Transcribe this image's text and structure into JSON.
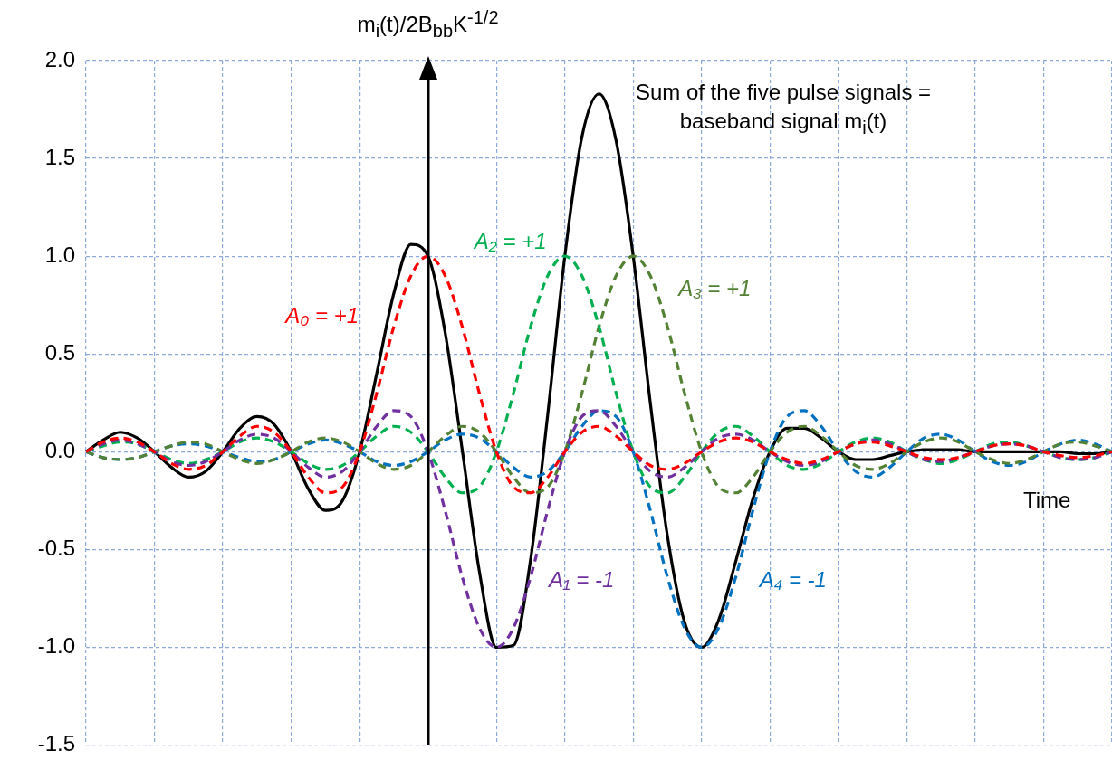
{
  "chart_data": {
    "type": "line",
    "ylabel": "m$_{i}$(t)/2B$_{bb}$K$^{-1/2}$",
    "xlabel": "Time",
    "annotations": [
      "Sum of the five pulse signals = baseband signal m$_{i}$(t)"
    ],
    "categories": [
      null,
      null,
      null,
      null,
      null,
      null,
      null,
      null,
      null,
      null,
      null,
      null,
      null,
      null,
      null,
      null,
      null,
      null,
      null,
      null,
      null,
      null,
      null,
      null,
      null,
      null,
      null,
      null,
      null,
      null,
      null,
      null,
      null,
      null,
      null,
      null,
      null,
      null,
      null,
      null,
      null,
      null,
      null,
      null,
      null,
      null,
      null,
      null,
      null,
      null,
      null,
      null,
      null,
      null,
      null,
      null,
      null,
      null,
      null,
      null,
      null
    ],
    "ylim": [
      -1.5,
      2
    ],
    "yticks": [
      {
        "value": -1.5,
        "label": "-1.5"
      },
      {
        "value": -1,
        "label": "-1.0"
      },
      {
        "value": -0.5,
        "label": "-0.5"
      },
      {
        "value": 0,
        "label": "0.0"
      },
      {
        "value": 0.5,
        "label": "0.5"
      },
      {
        "value": 1,
        "label": "1.0"
      },
      {
        "value": 1.5,
        "label": "1.5"
      },
      {
        "value": 2,
        "label": "2.0"
      }
    ],
    "grid": true,
    "legend": false,
    "marker": "none",
    "tick_labels": "y",
    "series": [
      {
        "name": "A₀ = +1",
        "color": "#ff0000",
        "line_style": "dashed",
        "values": [
          0,
          0.05,
          0.07,
          0.05,
          0,
          -0.06,
          -0.09,
          -0.07,
          0,
          0.08,
          0.13,
          0.1,
          0,
          -0.13,
          -0.21,
          -0.18,
          0,
          0.3,
          0.64,
          0.9,
          1,
          0.9,
          0.64,
          0.3,
          0,
          -0.18,
          -0.21,
          -0.13,
          0,
          0.1,
          0.13,
          0.08,
          0,
          -0.07,
          -0.09,
          -0.06,
          0,
          0.05,
          0.07,
          0.05,
          0,
          -0.04,
          -0.06,
          -0.04,
          0,
          0.04,
          0.05,
          0.03,
          0,
          -0.03,
          -0.04,
          -0.03,
          0,
          0.03,
          0.04,
          0.03,
          0,
          -0.02,
          -0.03,
          -0.02,
          0
        ]
      },
      {
        "name": "A₁ = -1",
        "color": "#7030a0",
        "line_style": "dashed",
        "values": [
          0,
          0.04,
          0.06,
          0.04,
          0,
          -0.05,
          -0.07,
          -0.05,
          0,
          0.06,
          0.09,
          0.07,
          0,
          -0.08,
          -0.13,
          -0.1,
          0,
          0.13,
          0.21,
          0.18,
          0,
          -0.3,
          -0.64,
          -0.9,
          -1,
          -0.9,
          -0.64,
          -0.3,
          0,
          0.18,
          0.21,
          0.13,
          0,
          -0.1,
          -0.13,
          -0.08,
          0,
          0.07,
          0.09,
          0.06,
          0,
          -0.05,
          -0.07,
          -0.05,
          0,
          0.04,
          0.06,
          0.04,
          0,
          -0.04,
          -0.05,
          -0.03,
          0,
          0.03,
          0.04,
          0.03,
          0,
          -0.03,
          -0.04,
          -0.03,
          0
        ]
      },
      {
        "name": "A₂ = +1",
        "color": "#00b050",
        "line_style": "dashed",
        "values": [
          0,
          0.03,
          0.05,
          0.04,
          0,
          -0.04,
          -0.06,
          -0.04,
          0,
          0.05,
          0.07,
          0.05,
          0,
          -0.06,
          -0.09,
          -0.07,
          0,
          0.08,
          0.13,
          0.1,
          0,
          -0.13,
          -0.21,
          -0.18,
          0,
          0.3,
          0.64,
          0.9,
          1,
          0.9,
          0.64,
          0.3,
          0,
          -0.18,
          -0.21,
          -0.13,
          0,
          0.1,
          0.13,
          0.08,
          0,
          -0.07,
          -0.09,
          -0.06,
          0,
          0.05,
          0.07,
          0.05,
          0,
          -0.04,
          -0.06,
          -0.04,
          0,
          0.04,
          0.05,
          0.03,
          0,
          -0.03,
          -0.04,
          -0.03,
          0
        ]
      },
      {
        "name": "A₃ = +1",
        "color": "#548235",
        "line_style": "dashed",
        "values": [
          0,
          -0.03,
          -0.04,
          -0.03,
          0,
          0.03,
          0.05,
          0.04,
          0,
          -0.04,
          -0.06,
          -0.04,
          0,
          0.05,
          0.07,
          0.05,
          0,
          -0.06,
          -0.09,
          -0.07,
          0,
          0.08,
          0.13,
          0.1,
          0,
          -0.13,
          -0.21,
          -0.18,
          0,
          0.3,
          0.64,
          0.9,
          1,
          0.9,
          0.64,
          0.3,
          0,
          -0.18,
          -0.21,
          -0.13,
          0,
          0.1,
          0.13,
          0.08,
          0,
          -0.07,
          -0.09,
          -0.06,
          0,
          0.05,
          0.07,
          0.05,
          0,
          -0.04,
          -0.06,
          -0.04,
          0,
          0.04,
          0.05,
          0.03,
          0
        ]
      },
      {
        "name": "A₄ = -1",
        "color": "#0070c0",
        "line_style": "dashed",
        "values": [
          0,
          -0.03,
          -0.04,
          -0.03,
          0,
          0.03,
          0.04,
          0.03,
          0,
          -0.03,
          -0.05,
          -0.04,
          0,
          0.04,
          0.06,
          0.04,
          0,
          -0.05,
          -0.07,
          -0.05,
          0,
          0.06,
          0.09,
          0.07,
          0,
          -0.08,
          -0.13,
          -0.1,
          0,
          0.13,
          0.21,
          0.18,
          0,
          -0.3,
          -0.64,
          -0.9,
          -1,
          -0.9,
          -0.64,
          -0.3,
          0,
          0.18,
          0.21,
          0.13,
          0,
          -0.1,
          -0.13,
          -0.08,
          0,
          0.07,
          0.09,
          0.06,
          0,
          -0.05,
          -0.07,
          -0.05,
          0,
          0.04,
          0.06,
          0.04,
          0
        ]
      },
      {
        "color": "#000000",
        "line_style": "solid",
        "values": [
          0,
          0.06,
          0.1,
          0.07,
          0,
          -0.08,
          -0.13,
          -0.1,
          0,
          0.12,
          0.18,
          0.14,
          0,
          -0.19,
          -0.3,
          -0.25,
          0,
          0.4,
          0.81,
          1.06,
          1,
          0.61,
          0.01,
          -0.61,
          -1,
          -0.99,
          -0.55,
          0.19,
          1,
          1.61,
          1.83,
          1.59,
          1,
          0.25,
          -0.43,
          -0.87,
          -1,
          -0.86,
          -0.56,
          -0.24,
          0,
          0.12,
          0.12,
          0.07,
          0,
          -0.04,
          -0.04,
          -0.02,
          0,
          0.01,
          0.01,
          0.01,
          0,
          0,
          0,
          0,
          0,
          0,
          -0.01,
          -0.01,
          0
        ]
      }
    ]
  }
}
